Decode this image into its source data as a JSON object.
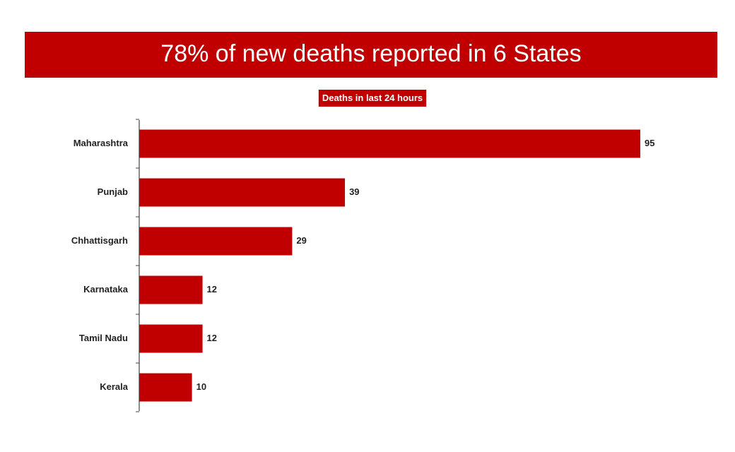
{
  "chart_data": {
    "type": "bar",
    "orientation": "horizontal",
    "title": "78% of new deaths reported in 6 States",
    "subtitle": "Deaths in last 24 hours",
    "categories": [
      "Maharashtra",
      "Punjab",
      "Chhattisgarh",
      "Karnataka",
      "Tamil Nadu",
      "Kerala"
    ],
    "values": [
      95,
      39,
      29,
      12,
      12,
      10
    ],
    "color": "#c00000"
  }
}
